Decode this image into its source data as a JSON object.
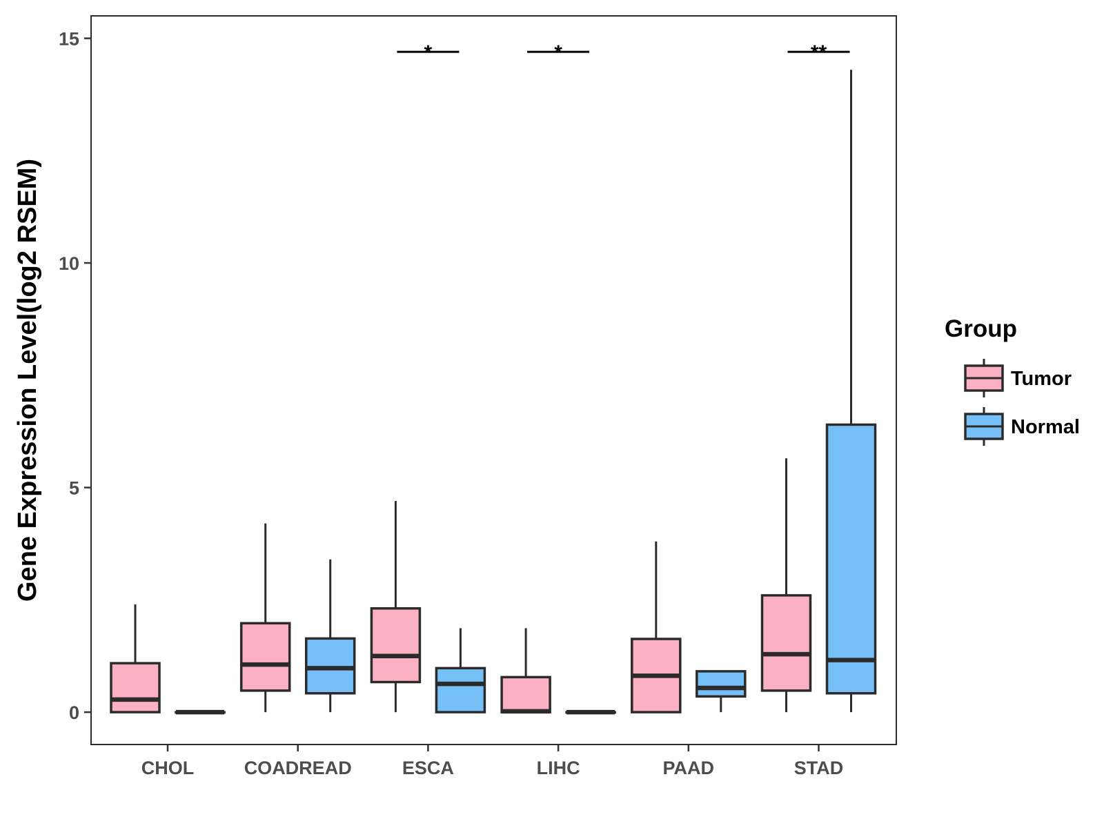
{
  "chart_data": {
    "type": "boxplot",
    "title": "",
    "xlabel": "",
    "ylabel": "Gene Expression Level(log2 RSEM)",
    "ylim": [
      -0.72,
      15.5
    ],
    "yticks": [
      0,
      5,
      10,
      15
    ],
    "ytick_labels": [
      "0",
      "5",
      "10",
      "15"
    ],
    "categories": [
      "CHOL",
      "COADREAD",
      "ESCA",
      "LIHC",
      "PAAD",
      "STAD"
    ],
    "grid": false,
    "legend": {
      "title": "Group",
      "position": "right",
      "entries": [
        {
          "name": "Tumor",
          "color": "#FBB1C2"
        },
        {
          "name": "Normal",
          "color": "#76C0F7"
        }
      ]
    },
    "box_stroke_color": "#2b2b2b",
    "series": [
      {
        "name": "Tumor",
        "color": "#FBB1C2",
        "boxes": [
          {
            "category": "CHOL",
            "whisker_low": 0,
            "q1": 0,
            "median": 0.28,
            "q3": 1.09,
            "whisker_high": 2.4
          },
          {
            "category": "COADREAD",
            "whisker_low": 0,
            "q1": 0.48,
            "median": 1.06,
            "q3": 1.98,
            "whisker_high": 4.2
          },
          {
            "category": "ESCA",
            "whisker_low": 0,
            "q1": 0.67,
            "median": 1.25,
            "q3": 2.31,
            "whisker_high": 4.7
          },
          {
            "category": "LIHC",
            "whisker_low": 0,
            "q1": 0,
            "median": 0.02,
            "q3": 0.78,
            "whisker_high": 1.87
          },
          {
            "category": "PAAD",
            "whisker_low": 0,
            "q1": 0,
            "median": 0.81,
            "q3": 1.63,
            "whisker_high": 3.8
          },
          {
            "category": "STAD",
            "whisker_low": 0,
            "q1": 0.48,
            "median": 1.29,
            "q3": 2.6,
            "whisker_high": 5.65
          }
        ]
      },
      {
        "name": "Normal",
        "color": "#76C0F7",
        "boxes": [
          {
            "category": "CHOL",
            "whisker_low": 0,
            "q1": 0,
            "median": 0,
            "q3": 0,
            "whisker_high": 0
          },
          {
            "category": "COADREAD",
            "whisker_low": 0,
            "q1": 0.42,
            "median": 0.98,
            "q3": 1.64,
            "whisker_high": 3.4
          },
          {
            "category": "ESCA",
            "whisker_low": 0,
            "q1": 0,
            "median": 0.63,
            "q3": 0.98,
            "whisker_high": 1.87
          },
          {
            "category": "LIHC",
            "whisker_low": 0,
            "q1": 0,
            "median": 0,
            "q3": 0,
            "whisker_high": 0
          },
          {
            "category": "PAAD",
            "whisker_low": 0,
            "q1": 0.35,
            "median": 0.54,
            "q3": 0.91,
            "whisker_high": 0.91
          },
          {
            "category": "STAD",
            "whisker_low": 0,
            "q1": 0.42,
            "median": 1.16,
            "q3": 6.4,
            "whisker_high": 14.3
          }
        ]
      }
    ],
    "annotations": [
      {
        "category": "ESCA",
        "label": "*",
        "y": 14.7
      },
      {
        "category": "LIHC",
        "label": "*",
        "y": 14.7
      },
      {
        "category": "STAD",
        "label": "**",
        "y": 14.7
      }
    ]
  }
}
